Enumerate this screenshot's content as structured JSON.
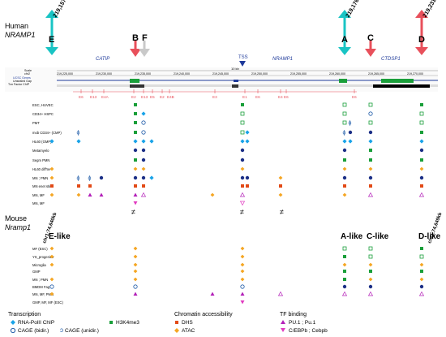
{
  "human": {
    "species": "Human",
    "gene": "NRAMP1",
    "genes": [
      "CATIP",
      "NRAMP1",
      "CTDSP1"
    ],
    "tss_label": "TSS",
    "coords": [
      "219,157kb",
      "219,176kb",
      "219,231kb"
    ],
    "region_letters": [
      "E",
      "B",
      "F",
      "A",
      "C",
      "D"
    ],
    "ucsc_labels": [
      "Scale",
      "chr2",
      "UCSC Genes",
      "Unsealed Gap",
      "Txn Factor ChIP"
    ],
    "scale_label": "10 kb",
    "positions": [
      "219,225,000",
      "219,230,000",
      "219,235,000",
      "219,240,000",
      "219,245,000",
      "219,250,000",
      "219,255,000",
      "219,260,000",
      "219,265,000",
      "219,270,000"
    ],
    "peak_labels": [
      "E6",
      "E13",
      "E4A",
      "E2",
      "E13",
      "E5",
      "E2",
      "E4B",
      "E3",
      "E1",
      "E6",
      "E4",
      "E6",
      "E6"
    ],
    "rows": [
      "ESC, HUVEC",
      "CD34+ HSPC",
      "PMT",
      "mob CD34+ (CMP)",
      "HL60 (GMP)",
      "Metamyelo",
      "Segm PMN",
      "HL60 diff'ter",
      "MN ; PMN",
      "MN enet stimi",
      "MN, MF",
      "MN, MF"
    ]
  },
  "mouse": {
    "species": "Mouse",
    "gene": "Nramp1",
    "coords": [
      "chr1:74,640kb",
      "chr1:74,649kb"
    ],
    "like_labels": [
      "E-like",
      "A-like",
      "C-like",
      "D-like"
    ],
    "rows": [
      "MF (ESC)",
      "YS_progenitor",
      "Microglia",
      "GMP",
      "MN ; PMN",
      "BMDM Fag",
      "MN, MF, PMN",
      "GMP, MF, MF (ESC)"
    ]
  },
  "legend": {
    "transcription_title": "Transcription",
    "rna_pol": "RNA-PolII ChIP",
    "cage_bidir": "CAGE (bidir.)",
    "cage_unidir": "CAGE (unidir.)",
    "h3k4me3": "H3K4me3",
    "chromatin_title": "Chromatin accessibility",
    "dhs": "DHS",
    "atac": "ATAC",
    "tf_title": "TF binding",
    "pu1": "PU.1 ; Pu.1",
    "cebp": "C/EBPb ; Cebpb"
  },
  "colors": {
    "cyan": "#19c4c4",
    "red": "#e8505b",
    "gray": "#c9c9c9",
    "blue": "#1e5ba8",
    "green": "#1a9f3a",
    "orange": "#f5a623",
    "darkorange": "#e24a17",
    "magenta": "#b320b8",
    "navy": "#1b2f86"
  }
}
